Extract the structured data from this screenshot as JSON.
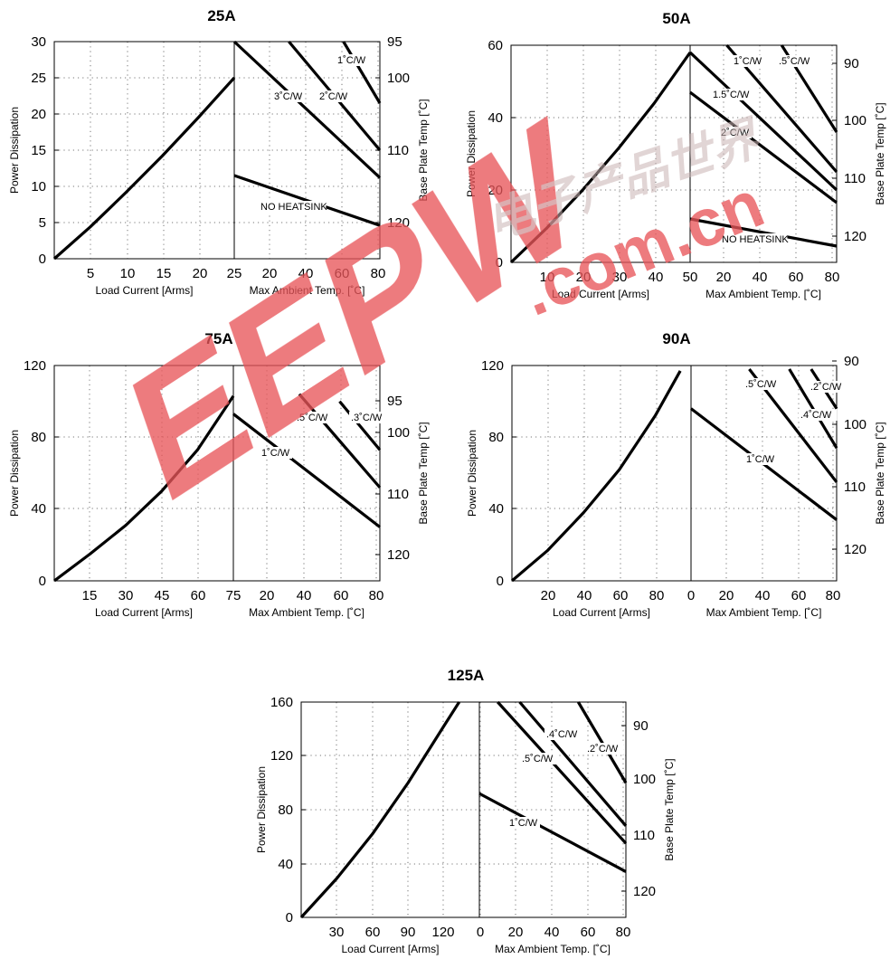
{
  "chart_data": [
    {
      "type": "line",
      "title": "25A",
      "left": {
        "xlabel": "Load Current  [Arms]",
        "ylabel": "Power Dissipation",
        "xlim": [
          0,
          25
        ],
        "ylim": [
          0,
          30
        ],
        "xticks": [
          "5",
          "10",
          "15",
          "20",
          "25"
        ],
        "yticks": [
          "0",
          "5",
          "10",
          "15",
          "20",
          "25",
          "30"
        ],
        "curve": {
          "x": [
            0,
            5,
            10,
            15,
            20,
            25
          ],
          "y": [
            0,
            4.4,
            9.2,
            14.2,
            19.5,
            25
          ]
        }
      },
      "right": {
        "xlabel": "Max Ambient Temp. [˚C]",
        "ylabel": "Base Plate Temp [˚C]",
        "xlim": [
          0,
          80
        ],
        "xticks": [
          "20",
          "40",
          "60",
          "80"
        ],
        "temp_ticks": [
          "95",
          "100",
          "110",
          "120"
        ],
        "lines": [
          {
            "label": "NO HEATSINK",
            "x": [
              0,
              80
            ],
            "y": [
              11.5,
              4.6
            ]
          },
          {
            "label": "3˚C/W",
            "x": [
              0,
              80
            ],
            "y": [
              30,
              11.2
            ]
          },
          {
            "label": "2˚C/W",
            "x": [
              30,
              80
            ],
            "y": [
              30,
              15
            ]
          },
          {
            "label": "1˚C/W",
            "x": [
              60,
              80
            ],
            "y": [
              30,
              21.5
            ]
          }
        ]
      }
    },
    {
      "type": "line",
      "title": "50A",
      "left": {
        "xlabel": "Load Current  [Arms]",
        "ylabel": "Power Dissipation",
        "xlim": [
          0,
          50
        ],
        "ylim": [
          0,
          60
        ],
        "xticks": [
          "10",
          "20",
          "30",
          "40",
          "50"
        ],
        "yticks": [
          "0",
          "20",
          "40",
          "60"
        ],
        "curve": {
          "x": [
            0,
            10,
            20,
            30,
            40,
            50
          ],
          "y": [
            0,
            9.5,
            20,
            31.5,
            44,
            58
          ]
        }
      },
      "right": {
        "xlabel": "Max Ambient Temp. [˚C]",
        "ylabel": "Base Plate Temp [˚C]",
        "xlim": [
          0,
          80
        ],
        "xticks": [
          "20",
          "40",
          "60",
          "80"
        ],
        "temp_ticks": [
          "90",
          "100",
          "110",
          "120"
        ],
        "lines": [
          {
            "label": "NO HEATSINK",
            "x": [
              0,
              80
            ],
            "y": [
              12,
              4.5
            ]
          },
          {
            "label": "2˚C/W",
            "x": [
              0,
              80
            ],
            "y": [
              47,
              16.5
            ]
          },
          {
            "label": "1.5˚C/W",
            "x": [
              0,
              80
            ],
            "y": [
              58,
              20
            ]
          },
          {
            "label": "1˚C/W",
            "x": [
              20,
              80
            ],
            "y": [
              60,
              25
            ]
          },
          {
            "label": ".5˚C/W",
            "x": [
              50,
              80
            ],
            "y": [
              60,
              36
            ]
          }
        ]
      }
    },
    {
      "type": "line",
      "title": "75A",
      "left": {
        "xlabel": "Load Current  [Arms]",
        "ylabel": "Power Dissipation",
        "xlim": [
          0,
          75
        ],
        "ylim": [
          0,
          120
        ],
        "xticks": [
          "15",
          "30",
          "45",
          "60",
          "75"
        ],
        "yticks": [
          "0",
          "40",
          "80",
          "120"
        ],
        "curve": {
          "x": [
            0,
            15,
            30,
            45,
            60,
            75
          ],
          "y": [
            0,
            15,
            31,
            50,
            73,
            103
          ]
        }
      },
      "right": {
        "xlabel": "Max Ambient Temp. [˚C]",
        "ylabel": "Base Plate Temp [˚C]",
        "xlim": [
          0,
          80
        ],
        "xticks": [
          "20",
          "40",
          "60",
          "80"
        ],
        "temp_ticks": [
          "95",
          "100",
          "110",
          "120"
        ],
        "lines": [
          {
            "label": "1˚C/W",
            "x": [
              0,
              80
            ],
            "y": [
              93,
              30
            ]
          },
          {
            "label": ".5˚C/W",
            "x": [
              36,
              80
            ],
            "y": [
              104,
              52
            ]
          },
          {
            "label": ".3˚C/W",
            "x": [
              58,
              80
            ],
            "y": [
              100,
              73
            ]
          }
        ]
      }
    },
    {
      "type": "line",
      "title": "90A",
      "left": {
        "xlabel": "Load Current  [Arms]",
        "ylabel": "Power Dissipation",
        "xlim": [
          0,
          100
        ],
        "ylim": [
          0,
          120
        ],
        "xticks": [
          "20",
          "40",
          "60",
          "80"
        ],
        "yticks": [
          "0",
          "40",
          "80",
          "120"
        ],
        "curve": {
          "x": [
            0,
            20,
            40,
            60,
            80,
            94
          ],
          "y": [
            0,
            17,
            38,
            62,
            92,
            117
          ]
        }
      },
      "right": {
        "xlabel": "Max Ambient Temp. [˚C]",
        "ylabel": "Base Plate Temp [˚C]",
        "xlim": [
          0,
          80
        ],
        "xticks": [
          "0",
          "20",
          "40",
          "60",
          "80"
        ],
        "temp_ticks": [
          "90",
          "100",
          "110",
          "120"
        ],
        "lines": [
          {
            "label": "1˚C/W",
            "x": [
              0,
              80
            ],
            "y": [
              96,
              34
            ]
          },
          {
            "label": ".5˚C/W",
            "x": [
              32,
              80
            ],
            "y": [
              118,
              55
            ]
          },
          {
            "label": ".4˚C/W",
            "x": [
              54,
              80
            ],
            "y": [
              118,
              74
            ]
          },
          {
            "label": ".2˚C/W",
            "x": [
              66,
              80
            ],
            "y": [
              118,
              96
            ]
          }
        ]
      }
    },
    {
      "type": "line",
      "title": "125A",
      "left": {
        "xlabel": "Load Current  [Arms]",
        "ylabel": "Power Dissipation",
        "xlim": [
          0,
          150
        ],
        "ylim": [
          0,
          160
        ],
        "xticks": [
          "30",
          "60",
          "90",
          "120"
        ],
        "yticks": [
          "0",
          "40",
          "80",
          "120",
          "160"
        ],
        "curve": {
          "x": [
            0,
            30,
            60,
            90,
            120,
            133
          ],
          "y": [
            0,
            29,
            62,
            100,
            142,
            160
          ]
        }
      },
      "right": {
        "xlabel": "Max Ambient Temp. [˚C]",
        "ylabel": "Base Plate Temp [˚C]",
        "xlim": [
          0,
          80
        ],
        "xticks": [
          "0",
          "20",
          "40",
          "60",
          "80"
        ],
        "temp_ticks": [
          "90",
          "100",
          "110",
          "120"
        ],
        "lines": [
          {
            "label": "1˚C/W",
            "x": [
              0,
              80
            ],
            "y": [
              92,
              34
            ]
          },
          {
            "label": ".5˚C/W",
            "x": [
              10,
              80
            ],
            "y": [
              160,
              55
            ]
          },
          {
            "label": ".4˚C/W",
            "x": [
              22,
              80
            ],
            "y": [
              160,
              68
            ]
          },
          {
            "label": ".2˚C/W",
            "x": [
              54,
              80
            ],
            "y": [
              160,
              100
            ]
          }
        ]
      }
    }
  ],
  "watermark": {
    "logo_text": "EEPW",
    "domain_text": ".com.cn",
    "cn_text": "电子产品世界",
    "color": "#e8555a"
  }
}
